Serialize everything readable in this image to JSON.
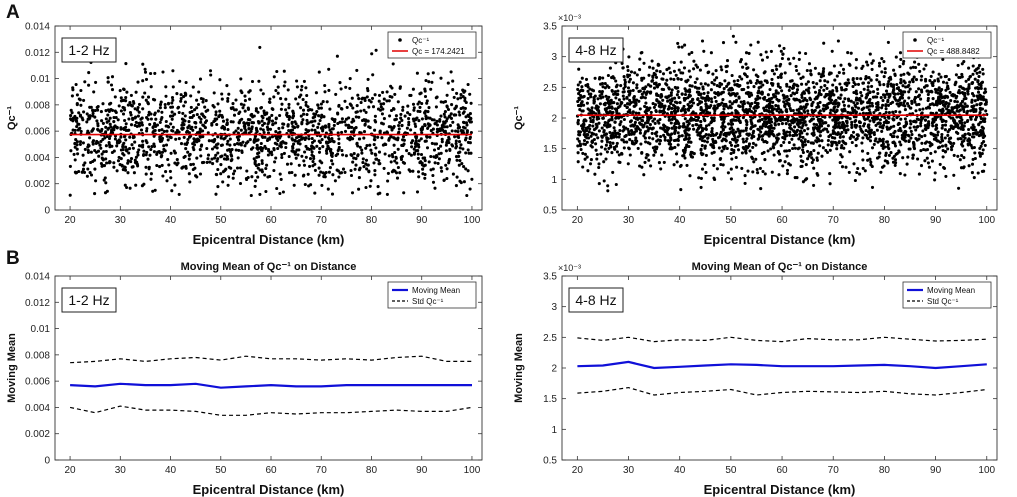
{
  "panel_labels": {
    "a": "A",
    "b": "B"
  },
  "colors": {
    "scatter": "#000000",
    "fit": "#e00000",
    "moving": "#1010d8",
    "std": "#000000",
    "axis": "#333333"
  },
  "chart_data": [
    {
      "id": "a-left",
      "type": "scatter",
      "title": "",
      "xlabel": "Epicentral Distance (km)",
      "ylabel": "Qc⁻¹",
      "band_label": "1-2 Hz",
      "exponent_label": "",
      "xlim": [
        17,
        102
      ],
      "ylim": [
        0,
        0.014
      ],
      "xticks": [
        20,
        30,
        40,
        50,
        60,
        70,
        80,
        90,
        100
      ],
      "xtick_labels": [
        "20",
        "30",
        "40",
        "50",
        "60",
        "70",
        "80",
        "90",
        "100"
      ],
      "yticks": [
        0,
        0.002,
        0.004,
        0.006,
        0.008,
        0.01,
        0.012,
        0.014
      ],
      "ytick_labels": [
        "0",
        "0.002",
        "0.004",
        "0.006",
        "0.008",
        "0.01",
        "0.012",
        "0.014"
      ],
      "legend": {
        "position": "top-right",
        "entries": [
          {
            "label": "Qc⁻¹",
            "style": "dot"
          },
          {
            "label": "Qc = 174.2421",
            "style": "red-line"
          }
        ]
      },
      "scatter": {
        "n": 1900,
        "seed": 11,
        "x_range": [
          20,
          100
        ],
        "mean": 0.0058,
        "sd": 0.0021,
        "clip": [
          0.0011,
          0.0135
        ]
      },
      "fit_value": 0.00574
    },
    {
      "id": "a-right",
      "type": "scatter",
      "title": "",
      "xlabel": "Epicentral Distance (km)",
      "ylabel": "Qc⁻¹",
      "band_label": "4-8 Hz",
      "exponent_label": "×10⁻³",
      "xlim": [
        17,
        102
      ],
      "ylim": [
        0.5,
        3.5
      ],
      "xticks": [
        20,
        30,
        40,
        50,
        60,
        70,
        80,
        90,
        100
      ],
      "xtick_labels": [
        "20",
        "30",
        "40",
        "50",
        "60",
        "70",
        "80",
        "90",
        "100"
      ],
      "yticks": [
        0.5,
        1,
        1.5,
        2,
        2.5,
        3,
        3.5
      ],
      "ytick_labels": [
        "0.5",
        "1",
        "1.5",
        "2",
        "2.5",
        "3",
        "3.5"
      ],
      "legend": {
        "position": "top-right",
        "entries": [
          {
            "label": "Qc⁻¹",
            "style": "dot"
          },
          {
            "label": "Qc = 488.8482",
            "style": "red-line"
          }
        ]
      },
      "scatter": {
        "n": 3200,
        "seed": 29,
        "x_range": [
          20,
          100
        ],
        "mean": 2.05,
        "sd": 0.44,
        "clip": [
          0.8,
          3.35
        ]
      },
      "fit_value": 2.046
    },
    {
      "id": "b-left",
      "type": "line",
      "title": "Moving Mean of Qc⁻¹ on Distance",
      "xlabel": "Epicentral Distance (km)",
      "ylabel": "Moving Mean",
      "band_label": "1-2 Hz",
      "exponent_label": "",
      "xlim": [
        17,
        102
      ],
      "ylim": [
        0,
        0.014
      ],
      "xticks": [
        20,
        30,
        40,
        50,
        60,
        70,
        80,
        90,
        100
      ],
      "xtick_labels": [
        "20",
        "30",
        "40",
        "50",
        "60",
        "70",
        "80",
        "90",
        "100"
      ],
      "yticks": [
        0,
        0.002,
        0.004,
        0.006,
        0.008,
        0.01,
        0.012,
        0.014
      ],
      "ytick_labels": [
        "0",
        "0.002",
        "0.004",
        "0.006",
        "0.008",
        "0.01",
        "0.012",
        "0.014"
      ],
      "legend": {
        "position": "top-right",
        "entries": [
          {
            "label": "Moving Mean",
            "style": "blue-line"
          },
          {
            "label": "Std Qc⁻¹",
            "style": "dashed"
          }
        ]
      },
      "x": [
        20,
        25,
        30,
        35,
        40,
        45,
        50,
        55,
        60,
        65,
        70,
        75,
        80,
        85,
        90,
        95,
        100
      ],
      "series": [
        {
          "name": "Moving Mean",
          "values": [
            0.0057,
            0.0056,
            0.0058,
            0.0057,
            0.0057,
            0.0058,
            0.0055,
            0.0056,
            0.0057,
            0.0056,
            0.0056,
            0.0057,
            0.0057,
            0.0057,
            0.0057,
            0.0057,
            0.0057
          ]
        },
        {
          "name": "Std upper",
          "values": [
            0.0074,
            0.0075,
            0.0077,
            0.0075,
            0.0077,
            0.0078,
            0.0076,
            0.0079,
            0.0077,
            0.0077,
            0.0076,
            0.0077,
            0.0076,
            0.0078,
            0.0079,
            0.0075,
            0.0075
          ]
        },
        {
          "name": "Std lower",
          "values": [
            0.004,
            0.0036,
            0.0041,
            0.0038,
            0.0038,
            0.0037,
            0.0034,
            0.0034,
            0.0036,
            0.0035,
            0.0036,
            0.0036,
            0.0037,
            0.0038,
            0.0037,
            0.0037,
            0.004
          ]
        }
      ]
    },
    {
      "id": "b-right",
      "type": "line",
      "title": "Moving Mean of Qc⁻¹ on Distance",
      "xlabel": "Epicentral Distance (km)",
      "ylabel": "Moving Mean",
      "band_label": "4-8 Hz",
      "exponent_label": "×10⁻³",
      "xlim": [
        17,
        102
      ],
      "ylim": [
        0.5,
        3.5
      ],
      "xticks": [
        20,
        30,
        40,
        50,
        60,
        70,
        80,
        90,
        100
      ],
      "xtick_labels": [
        "20",
        "30",
        "40",
        "50",
        "60",
        "70",
        "80",
        "90",
        "100"
      ],
      "yticks": [
        0.5,
        1,
        1.5,
        2,
        2.5,
        3,
        3.5
      ],
      "ytick_labels": [
        "0.5",
        "1",
        "1.5",
        "2",
        "2.5",
        "3",
        "3.5"
      ],
      "legend": {
        "position": "top-right",
        "entries": [
          {
            "label": "Moving Mean",
            "style": "blue-line"
          },
          {
            "label": "Std Qc⁻¹",
            "style": "dashed"
          }
        ]
      },
      "x": [
        20,
        25,
        30,
        35,
        40,
        45,
        50,
        55,
        60,
        65,
        70,
        75,
        80,
        85,
        90,
        95,
        100
      ],
      "series": [
        {
          "name": "Moving Mean",
          "values": [
            2.03,
            2.04,
            2.1,
            2.0,
            2.02,
            2.04,
            2.06,
            2.05,
            2.03,
            2.03,
            2.03,
            2.04,
            2.05,
            2.03,
            2.0,
            2.03,
            2.06
          ]
        },
        {
          "name": "Std upper",
          "values": [
            2.49,
            2.45,
            2.5,
            2.43,
            2.46,
            2.45,
            2.5,
            2.45,
            2.43,
            2.48,
            2.46,
            2.46,
            2.5,
            2.47,
            2.44,
            2.45,
            2.47
          ]
        },
        {
          "name": "Std lower",
          "values": [
            1.59,
            1.62,
            1.68,
            1.56,
            1.6,
            1.62,
            1.65,
            1.56,
            1.6,
            1.62,
            1.61,
            1.6,
            1.62,
            1.58,
            1.56,
            1.6,
            1.65
          ]
        }
      ]
    }
  ]
}
